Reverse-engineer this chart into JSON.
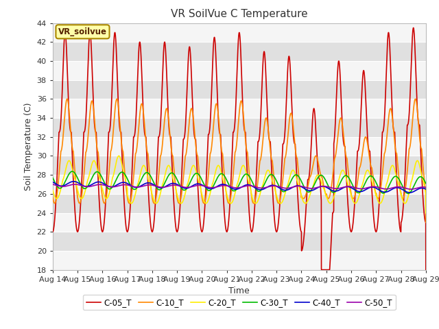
{
  "title": "VR SoilVue C Temperature",
  "ylabel": "Soil Temperature (C)",
  "xlabel": "Time",
  "ylim": [
    18,
    44
  ],
  "yticks": [
    18,
    20,
    22,
    24,
    26,
    28,
    30,
    32,
    34,
    36,
    38,
    40,
    42,
    44
  ],
  "xtick_labels": [
    "Aug 14",
    "Aug 15",
    "Aug 16",
    "Aug 17",
    "Aug 18",
    "Aug 19",
    "Aug 20",
    "Aug 21",
    "Aug 22",
    "Aug 23",
    "Aug 24",
    "Aug 25",
    "Aug 26",
    "Aug 27",
    "Aug 28",
    "Aug 29"
  ],
  "series_names": [
    "C-05_T",
    "C-10_T",
    "C-20_T",
    "C-30_T",
    "C-40_T",
    "C-50_T"
  ],
  "series_colors": [
    "#cc0000",
    "#ff8800",
    "#ffee00",
    "#00bb00",
    "#0000cc",
    "#9900aa"
  ],
  "legend_label": "VR_soilvue",
  "bg_color": "#ffffff",
  "plot_bg": "#e8e8e8",
  "grid_color": "#ffffff",
  "linewidth": 1.2
}
